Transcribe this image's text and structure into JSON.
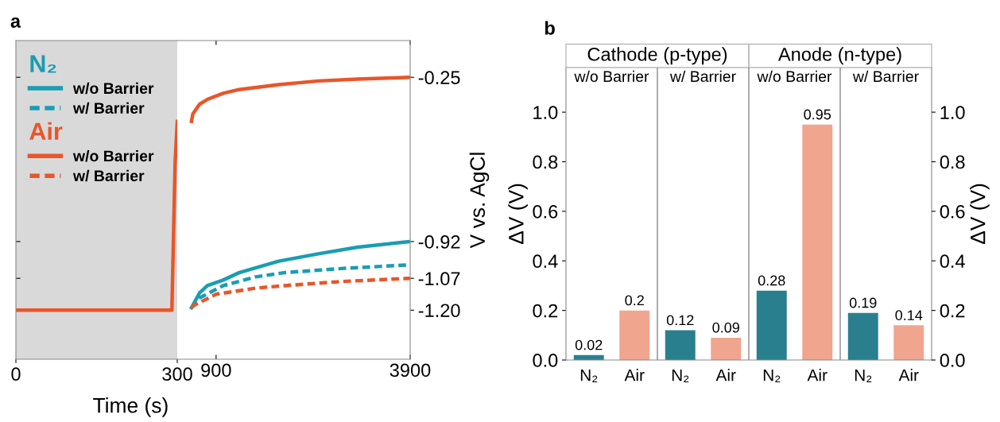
{
  "chart_data": [
    {
      "type": "line",
      "title": "a",
      "xlim": [
        0,
        300
      ],
      "xticks": [
        0,
        300
      ],
      "ylim": [
        -1.4,
        -0.1
      ],
      "yticks": [
        {
          "value": -0.25,
          "label": null
        },
        {
          "value": -0.92,
          "label": null
        },
        {
          "value": -1.07,
          "label": null
        },
        {
          "value": -1.2,
          "label": null
        }
      ],
      "tick_labels": "x",
      "bands": [
        {
          "axis": "x",
          "from": 0,
          "to": 300,
          "color": "#d9d9d9"
        }
      ],
      "series": [
        {
          "color": "#e8562a",
          "line_style": "solid",
          "x": [
            0,
            290,
            296,
            300
          ],
          "values": [
            -1.2,
            -1.2,
            -0.6,
            -0.43
          ]
        }
      ]
    },
    {
      "type": "line",
      "xlabel": "Time (s)",
      "ylabel": "V vs. AgCl",
      "xlim": [
        300,
        3900
      ],
      "xticks": [
        900,
        3900
      ],
      "ylim": [
        -1.4,
        -0.1
      ],
      "yticks": [
        -0.25,
        -0.92,
        {
          "value": -1.07,
          "label": "-1.07"
        },
        {
          "value": -1.2,
          "label": "-1.20"
        }
      ],
      "legend": "top left",
      "annotations": [
        "N₂",
        "Air"
      ],
      "series": [
        {
          "name": "w/o Barrier",
          "color": "#1a9db3",
          "line_style": "solid",
          "x": [
            520,
            643,
            765,
            1010,
            1255,
            1867,
            2480,
            3090,
            3900
          ],
          "values": [
            -1.19,
            -1.13,
            -1.1,
            -1.077,
            -1.047,
            -1.0,
            -0.97,
            -0.943,
            -0.92
          ]
        },
        {
          "name": "w/ Barrier",
          "color": "#1a9db3",
          "line_style": "dashed",
          "x": [
            520,
            643,
            1010,
            1512,
            1953,
            2835,
            3900
          ],
          "values": [
            -1.19,
            -1.15,
            -1.1,
            -1.064,
            -1.047,
            -1.03,
            -1.015
          ]
        },
        {
          "name": "w/o Barrier",
          "color": "#e8562a",
          "line_style": "solid",
          "x": [
            520,
            540,
            643,
            765,
            1010,
            1255,
            1867,
            2480,
            3090,
            3900
          ],
          "values": [
            -0.43,
            -0.4,
            -0.36,
            -0.34,
            -0.315,
            -0.3,
            -0.28,
            -0.265,
            -0.257,
            -0.25
          ]
        },
        {
          "name": "w/ Barrier",
          "color": "#e8562a",
          "line_style": "dashed",
          "x": [
            520,
            557,
            900,
            1512,
            1953,
            2835,
            3900
          ],
          "values": [
            -1.19,
            -1.18,
            -1.135,
            -1.11,
            -1.1,
            -1.083,
            -1.07
          ]
        }
      ]
    },
    {
      "type": "bar",
      "title": "b",
      "categories": [
        "N₂",
        "Air",
        "N₂",
        "Air",
        "N₂",
        "Air",
        "N₂",
        "Air"
      ],
      "values": [
        0.02,
        0.2,
        0.12,
        0.09,
        0.28,
        0.95,
        0.19,
        0.14
      ],
      "colors": [
        "#2a7f8f",
        "#f0a58e",
        "#2a7f8f",
        "#f0a58e",
        "#2a7f8f",
        "#f0a58e",
        "#2a7f8f",
        "#f0a58e"
      ],
      "data_labels": true,
      "ylabel": "ΔV (V)",
      "y2label": "ΔV (V)",
      "ylim": [
        0,
        1.18
      ],
      "yticks": [
        {
          "value": 0,
          "label": "0.0"
        },
        0.2,
        0.4,
        0.6,
        0.8,
        {
          "value": 1,
          "label": "1.0"
        }
      ],
      "y2lim": [
        0,
        1.18
      ],
      "y2ticks": [
        {
          "value": 0,
          "label": "0.0"
        },
        0.2,
        0.4,
        0.6,
        0.8,
        {
          "value": 1,
          "label": "1.0"
        }
      ],
      "annotations": [
        "Cathode (p-type)",
        "Anode (n-type)",
        "w/o Barrier",
        "w/ Barrier",
        "w/o Barrier",
        "w/ Barrier"
      ]
    }
  ]
}
